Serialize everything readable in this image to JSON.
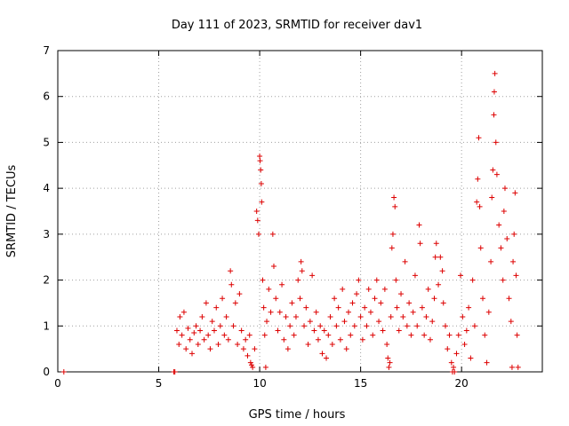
{
  "chart_data": {
    "type": "scatter",
    "title": "Day 111 of 2023, SRMTID for receiver dav1",
    "xlabel": "GPS time / hours",
    "ylabel": "SRMTID / TECUs",
    "xlim": [
      0,
      24
    ],
    "ylim": [
      0,
      7
    ],
    "xticks": [
      0,
      5,
      10,
      15,
      20
    ],
    "yticks": [
      0,
      1,
      2,
      3,
      4,
      5,
      6,
      7
    ],
    "grid": true,
    "marker": "+",
    "color": "#dd0000",
    "series": [
      {
        "name": "dav1",
        "points": [
          [
            0.3,
            0.0
          ],
          [
            5.75,
            0.0
          ],
          [
            5.8,
            0.0
          ],
          [
            5.9,
            0.9
          ],
          [
            6.0,
            0.6
          ],
          [
            6.05,
            1.2
          ],
          [
            6.15,
            0.8
          ],
          [
            6.25,
            1.3
          ],
          [
            6.35,
            0.5
          ],
          [
            6.45,
            0.95
          ],
          [
            6.55,
            0.7
          ],
          [
            6.65,
            0.4
          ],
          [
            6.75,
            0.85
          ],
          [
            6.85,
            1.0
          ],
          [
            6.95,
            0.6
          ],
          [
            7.05,
            0.9
          ],
          [
            7.15,
            1.2
          ],
          [
            7.25,
            0.7
          ],
          [
            7.35,
            1.5
          ],
          [
            7.45,
            0.8
          ],
          [
            7.55,
            0.5
          ],
          [
            7.65,
            1.1
          ],
          [
            7.75,
            0.9
          ],
          [
            7.85,
            1.4
          ],
          [
            7.95,
            0.6
          ],
          [
            8.05,
            1.0
          ],
          [
            8.15,
            1.6
          ],
          [
            8.25,
            0.8
          ],
          [
            8.35,
            1.2
          ],
          [
            8.45,
            0.7
          ],
          [
            8.55,
            2.2
          ],
          [
            8.6,
            1.9
          ],
          [
            8.7,
            1.0
          ],
          [
            8.8,
            1.5
          ],
          [
            8.9,
            0.6
          ],
          [
            9.0,
            1.7
          ],
          [
            9.1,
            0.9
          ],
          [
            9.2,
            0.5
          ],
          [
            9.3,
            0.7
          ],
          [
            9.4,
            0.35
          ],
          [
            9.5,
            0.8
          ],
          [
            9.55,
            0.2
          ],
          [
            9.6,
            0.15
          ],
          [
            9.65,
            0.1
          ],
          [
            9.75,
            0.5
          ],
          [
            9.85,
            3.5
          ],
          [
            9.9,
            3.3
          ],
          [
            9.95,
            3.0
          ],
          [
            10.0,
            4.7
          ],
          [
            10.02,
            4.6
          ],
          [
            10.05,
            4.4
          ],
          [
            10.08,
            4.1
          ],
          [
            10.1,
            3.7
          ],
          [
            10.15,
            2.0
          ],
          [
            10.2,
            1.4
          ],
          [
            10.25,
            0.8
          ],
          [
            10.3,
            0.1
          ],
          [
            10.35,
            1.1
          ],
          [
            10.45,
            1.8
          ],
          [
            10.55,
            1.3
          ],
          [
            10.65,
            3.0
          ],
          [
            10.7,
            2.3
          ],
          [
            10.8,
            1.6
          ],
          [
            10.9,
            0.9
          ],
          [
            11.0,
            1.3
          ],
          [
            11.1,
            1.9
          ],
          [
            11.2,
            0.7
          ],
          [
            11.3,
            1.2
          ],
          [
            11.4,
            0.5
          ],
          [
            11.5,
            1.0
          ],
          [
            11.6,
            1.5
          ],
          [
            11.7,
            0.8
          ],
          [
            11.8,
            1.2
          ],
          [
            11.9,
            2.0
          ],
          [
            12.0,
            1.6
          ],
          [
            12.05,
            2.4
          ],
          [
            12.1,
            2.2
          ],
          [
            12.2,
            1.0
          ],
          [
            12.3,
            1.4
          ],
          [
            12.4,
            0.6
          ],
          [
            12.5,
            1.1
          ],
          [
            12.6,
            2.1
          ],
          [
            12.7,
            0.9
          ],
          [
            12.8,
            1.3
          ],
          [
            12.9,
            0.7
          ],
          [
            13.0,
            1.0
          ],
          [
            13.1,
            0.4
          ],
          [
            13.2,
            0.9
          ],
          [
            13.3,
            0.3
          ],
          [
            13.4,
            0.8
          ],
          [
            13.5,
            1.2
          ],
          [
            13.6,
            0.6
          ],
          [
            13.7,
            1.6
          ],
          [
            13.8,
            1.0
          ],
          [
            13.9,
            1.4
          ],
          [
            14.0,
            0.7
          ],
          [
            14.1,
            1.8
          ],
          [
            14.2,
            1.1
          ],
          [
            14.3,
            0.5
          ],
          [
            14.4,
            1.3
          ],
          [
            14.5,
            0.8
          ],
          [
            14.6,
            1.5
          ],
          [
            14.7,
            1.0
          ],
          [
            14.8,
            1.7
          ],
          [
            14.9,
            2.0
          ],
          [
            15.0,
            1.2
          ],
          [
            15.1,
            0.7
          ],
          [
            15.2,
            1.4
          ],
          [
            15.3,
            1.0
          ],
          [
            15.4,
            1.8
          ],
          [
            15.5,
            1.3
          ],
          [
            15.6,
            0.8
          ],
          [
            15.7,
            1.6
          ],
          [
            15.8,
            2.0
          ],
          [
            15.9,
            1.1
          ],
          [
            16.0,
            1.5
          ],
          [
            16.1,
            0.9
          ],
          [
            16.2,
            1.8
          ],
          [
            16.3,
            0.6
          ],
          [
            16.35,
            0.3
          ],
          [
            16.4,
            0.1
          ],
          [
            16.45,
            0.2
          ],
          [
            16.5,
            1.2
          ],
          [
            16.55,
            2.7
          ],
          [
            16.6,
            3.0
          ],
          [
            16.65,
            3.8
          ],
          [
            16.7,
            3.6
          ],
          [
            16.75,
            2.0
          ],
          [
            16.8,
            1.4
          ],
          [
            16.9,
            0.9
          ],
          [
            17.0,
            1.7
          ],
          [
            17.1,
            1.2
          ],
          [
            17.2,
            2.4
          ],
          [
            17.3,
            1.0
          ],
          [
            17.4,
            1.5
          ],
          [
            17.5,
            0.8
          ],
          [
            17.6,
            1.3
          ],
          [
            17.7,
            2.1
          ],
          [
            17.8,
            1.0
          ],
          [
            17.9,
            3.2
          ],
          [
            17.95,
            2.8
          ],
          [
            18.05,
            1.4
          ],
          [
            18.15,
            0.8
          ],
          [
            18.25,
            1.2
          ],
          [
            18.35,
            1.8
          ],
          [
            18.45,
            0.7
          ],
          [
            18.55,
            1.1
          ],
          [
            18.65,
            1.6
          ],
          [
            18.7,
            2.5
          ],
          [
            18.75,
            2.8
          ],
          [
            18.85,
            1.9
          ],
          [
            18.95,
            2.5
          ],
          [
            19.05,
            2.2
          ],
          [
            19.1,
            1.5
          ],
          [
            19.2,
            1.0
          ],
          [
            19.3,
            0.5
          ],
          [
            19.4,
            0.8
          ],
          [
            19.5,
            0.2
          ],
          [
            19.55,
            0.0
          ],
          [
            19.6,
            0.1
          ],
          [
            19.65,
            0.0
          ],
          [
            19.75,
            0.4
          ],
          [
            19.85,
            0.8
          ],
          [
            19.95,
            2.1
          ],
          [
            20.05,
            1.2
          ],
          [
            20.15,
            0.6
          ],
          [
            20.25,
            0.9
          ],
          [
            20.35,
            1.4
          ],
          [
            20.45,
            0.3
          ],
          [
            20.55,
            2.0
          ],
          [
            20.65,
            1.0
          ],
          [
            20.75,
            3.7
          ],
          [
            20.8,
            4.2
          ],
          [
            20.85,
            5.1
          ],
          [
            20.9,
            3.6
          ],
          [
            20.95,
            2.7
          ],
          [
            21.05,
            1.6
          ],
          [
            21.15,
            0.8
          ],
          [
            21.25,
            0.2
          ],
          [
            21.35,
            1.3
          ],
          [
            21.45,
            2.4
          ],
          [
            21.5,
            3.8
          ],
          [
            21.55,
            4.4
          ],
          [
            21.6,
            5.6
          ],
          [
            21.62,
            6.1
          ],
          [
            21.65,
            6.5
          ],
          [
            21.7,
            5.0
          ],
          [
            21.75,
            4.3
          ],
          [
            21.85,
            3.2
          ],
          [
            21.95,
            2.7
          ],
          [
            22.05,
            2.0
          ],
          [
            22.1,
            3.5
          ],
          [
            22.15,
            4.0
          ],
          [
            22.25,
            2.9
          ],
          [
            22.35,
            1.6
          ],
          [
            22.45,
            1.1
          ],
          [
            22.5,
            0.1
          ],
          [
            22.55,
            2.4
          ],
          [
            22.6,
            3.0
          ],
          [
            22.65,
            3.9
          ],
          [
            22.7,
            2.1
          ],
          [
            22.75,
            0.8
          ],
          [
            22.8,
            0.1
          ]
        ]
      }
    ]
  }
}
